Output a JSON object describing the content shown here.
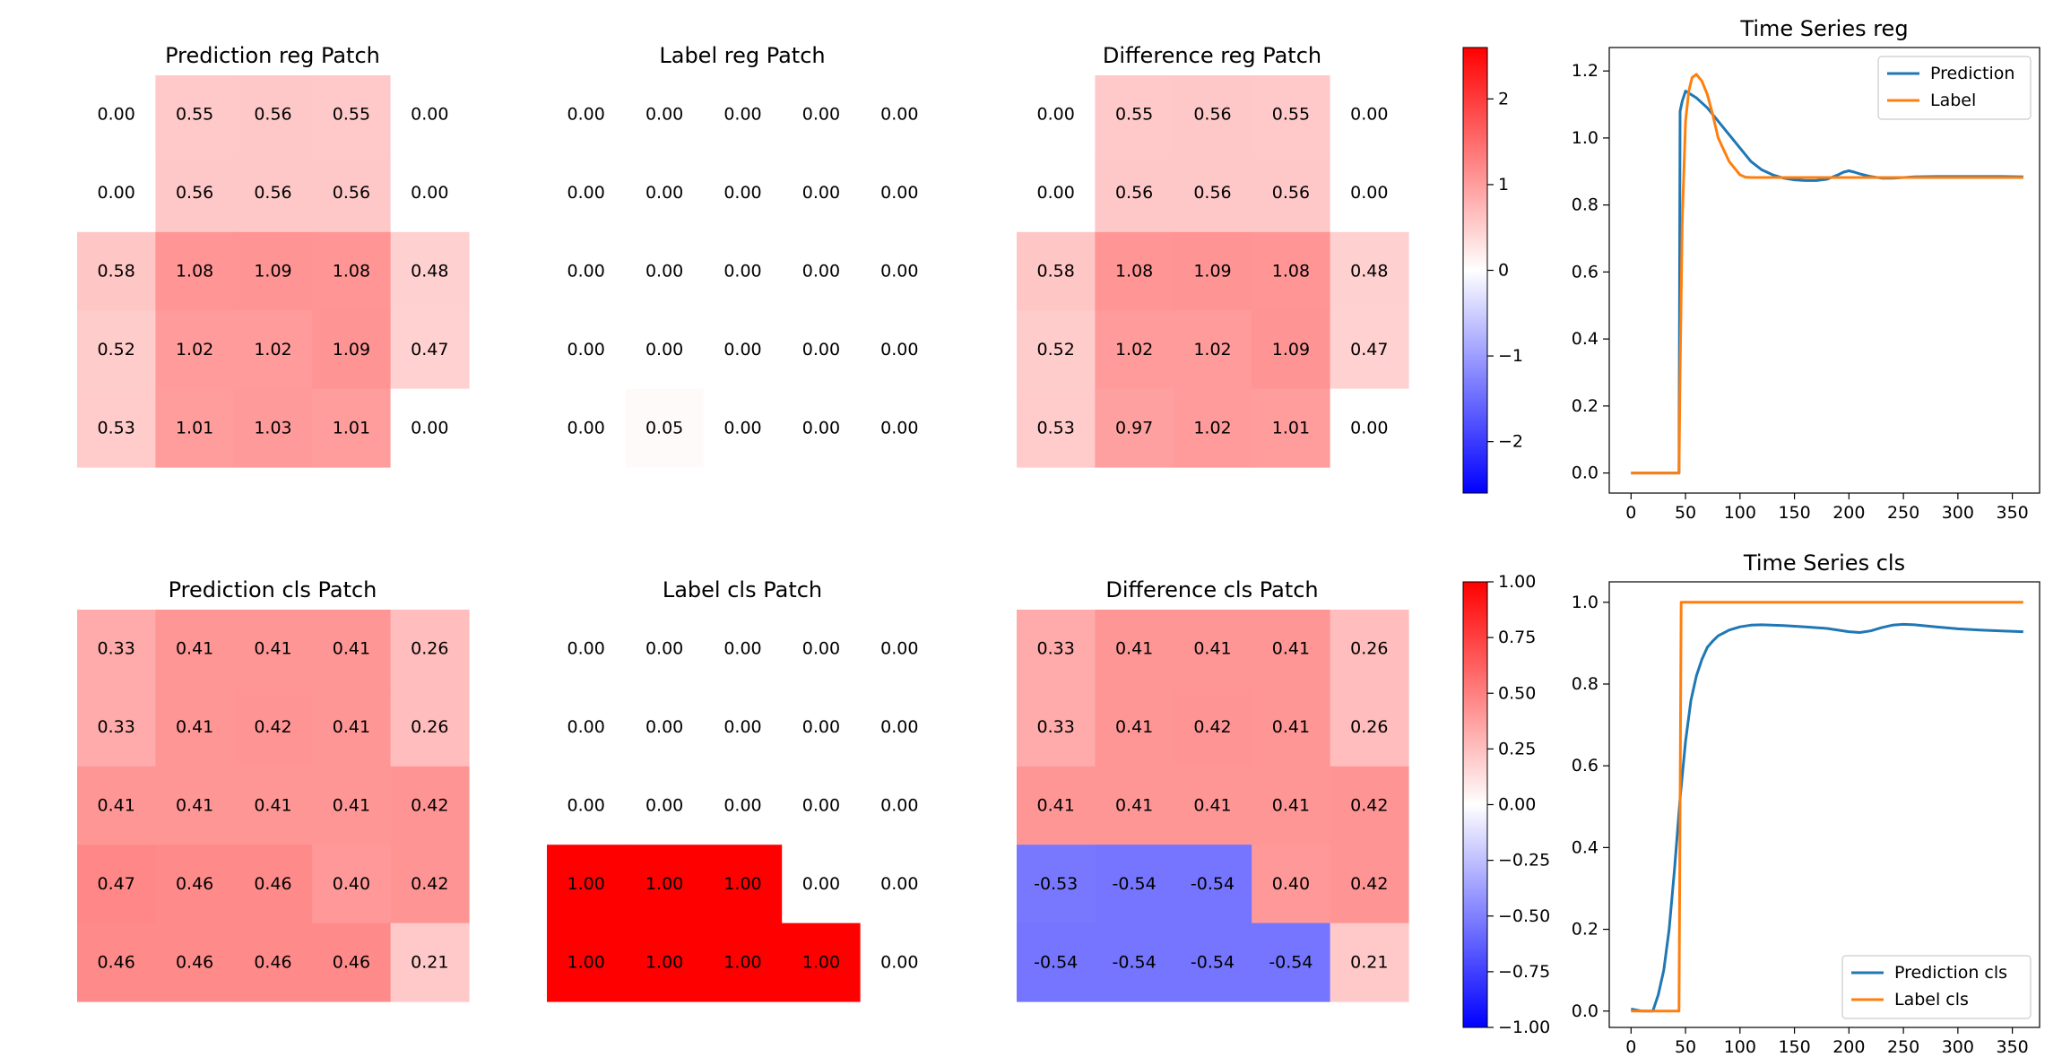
{
  "chart_data": [
    {
      "type": "heatmap",
      "title": "Prediction reg Patch",
      "values": [
        [
          0.0,
          0.55,
          0.56,
          0.55,
          0.0
        ],
        [
          0.0,
          0.56,
          0.56,
          0.56,
          0.0
        ],
        [
          0.58,
          1.08,
          1.09,
          1.08,
          0.48
        ],
        [
          0.52,
          1.02,
          1.02,
          1.09,
          0.47
        ],
        [
          0.53,
          1.01,
          1.03,
          1.01,
          0.0
        ]
      ],
      "labels": [
        [
          "0.00",
          "0.55",
          "0.56",
          "0.55",
          "0.00"
        ],
        [
          "0.00",
          "0.56",
          "0.56",
          "0.56",
          "0.00"
        ],
        [
          "0.58",
          "1.08",
          "1.09",
          "1.08",
          "0.48"
        ],
        [
          "0.52",
          "1.02",
          "1.02",
          "1.09",
          "0.47"
        ],
        [
          "0.53",
          "1.01",
          "1.03",
          "1.01",
          "0.00"
        ]
      ],
      "colormap": "bwr",
      "vlim": [
        -2.6,
        2.6
      ]
    },
    {
      "type": "heatmap",
      "title": "Label reg Patch",
      "values": [
        [
          0,
          0,
          0,
          0,
          0
        ],
        [
          0,
          0,
          0,
          0,
          0
        ],
        [
          0,
          0,
          0,
          0,
          0
        ],
        [
          0,
          0,
          0,
          0,
          0
        ],
        [
          0,
          0.05,
          0,
          0,
          0
        ]
      ],
      "labels": [
        [
          "0.00",
          "0.00",
          "0.00",
          "0.00",
          "0.00"
        ],
        [
          "0.00",
          "0.00",
          "0.00",
          "0.00",
          "0.00"
        ],
        [
          "0.00",
          "0.00",
          "0.00",
          "0.00",
          "0.00"
        ],
        [
          "0.00",
          "0.00",
          "0.00",
          "0.00",
          "0.00"
        ],
        [
          "0.00",
          "0.05",
          "0.00",
          "0.00",
          "0.00"
        ]
      ],
      "colormap": "bwr",
      "vlim": [
        -2.6,
        2.6
      ]
    },
    {
      "type": "heatmap",
      "title": "Difference reg Patch",
      "values": [
        [
          0.0,
          0.55,
          0.56,
          0.55,
          0.0
        ],
        [
          0.0,
          0.56,
          0.56,
          0.56,
          0.0
        ],
        [
          0.58,
          1.08,
          1.09,
          1.08,
          0.48
        ],
        [
          0.52,
          1.02,
          1.02,
          1.09,
          0.47
        ],
        [
          0.53,
          0.97,
          1.02,
          1.01,
          0.0
        ]
      ],
      "labels": [
        [
          "0.00",
          "0.55",
          "0.56",
          "0.55",
          "0.00"
        ],
        [
          "0.00",
          "0.56",
          "0.56",
          "0.56",
          "0.00"
        ],
        [
          "0.58",
          "1.08",
          "1.09",
          "1.08",
          "0.48"
        ],
        [
          "0.52",
          "1.02",
          "1.02",
          "1.09",
          "0.47"
        ],
        [
          "0.53",
          "0.97",
          "1.02",
          "1.01",
          "0.00"
        ]
      ],
      "colormap": "bwr",
      "vlim": [
        -2.6,
        2.6
      ],
      "colorbar": {
        "ticks": [
          2,
          1,
          0,
          -1,
          -2
        ],
        "tick_labels": [
          "2",
          "1",
          "0",
          "−1",
          "−2"
        ]
      }
    },
    {
      "type": "line",
      "title": "Time Series reg",
      "legend_position": "upper-right",
      "xlim": [
        -20,
        375
      ],
      "ylim": [
        -0.06,
        1.27
      ],
      "xticks": [
        0,
        50,
        100,
        150,
        200,
        250,
        300,
        350
      ],
      "xtick_labels": [
        "0",
        "50",
        "100",
        "150",
        "200",
        "250",
        "300",
        "350"
      ],
      "yticks": [
        0.0,
        0.2,
        0.4,
        0.6,
        0.8,
        1.0,
        1.2
      ],
      "ytick_labels": [
        "0.0",
        "0.2",
        "0.4",
        "0.6",
        "0.8",
        "1.0",
        "1.2"
      ],
      "series": [
        {
          "name": "Prediction",
          "color": "#1f77b4",
          "x": [
            0,
            44,
            45,
            47,
            50,
            55,
            60,
            70,
            80,
            90,
            100,
            110,
            120,
            130,
            140,
            150,
            160,
            170,
            180,
            190,
            195,
            200,
            205,
            210,
            220,
            230,
            240,
            250,
            260,
            280,
            300,
            320,
            340,
            360
          ],
          "y": [
            0,
            0,
            1.08,
            1.11,
            1.14,
            1.13,
            1.12,
            1.09,
            1.05,
            1.01,
            0.97,
            0.93,
            0.905,
            0.89,
            0.88,
            0.875,
            0.873,
            0.873,
            0.877,
            0.89,
            0.898,
            0.902,
            0.898,
            0.893,
            0.885,
            0.88,
            0.88,
            0.882,
            0.884,
            0.885,
            0.885,
            0.885,
            0.885,
            0.884
          ]
        },
        {
          "name": "Label",
          "color": "#ff7f0e",
          "x": [
            0,
            44,
            45,
            47,
            50,
            53,
            56,
            60,
            65,
            70,
            75,
            80,
            90,
            100,
            105,
            110,
            120,
            150,
            200,
            250,
            300,
            360
          ],
          "y": [
            0,
            0,
            0.3,
            0.75,
            1.05,
            1.14,
            1.18,
            1.19,
            1.17,
            1.13,
            1.07,
            1.0,
            0.93,
            0.89,
            0.883,
            0.882,
            0.882,
            0.882,
            0.882,
            0.882,
            0.882,
            0.882
          ]
        }
      ]
    },
    {
      "type": "heatmap",
      "title": "Prediction cls Patch",
      "values": [
        [
          0.33,
          0.41,
          0.41,
          0.41,
          0.26
        ],
        [
          0.33,
          0.41,
          0.42,
          0.41,
          0.26
        ],
        [
          0.41,
          0.41,
          0.41,
          0.41,
          0.42
        ],
        [
          0.47,
          0.46,
          0.46,
          0.4,
          0.42
        ],
        [
          0.46,
          0.46,
          0.46,
          0.46,
          0.21
        ]
      ],
      "labels": [
        [
          "0.33",
          "0.41",
          "0.41",
          "0.41",
          "0.26"
        ],
        [
          "0.33",
          "0.41",
          "0.42",
          "0.41",
          "0.26"
        ],
        [
          "0.41",
          "0.41",
          "0.41",
          "0.41",
          "0.42"
        ],
        [
          "0.47",
          "0.46",
          "0.46",
          "0.40",
          "0.42"
        ],
        [
          "0.46",
          "0.46",
          "0.46",
          "0.46",
          "0.21"
        ]
      ],
      "colormap": "bwr",
      "vlim": [
        -1,
        1
      ]
    },
    {
      "type": "heatmap",
      "title": "Label cls Patch",
      "values": [
        [
          0,
          0,
          0,
          0,
          0
        ],
        [
          0,
          0,
          0,
          0,
          0
        ],
        [
          0,
          0,
          0,
          0,
          0
        ],
        [
          1,
          1,
          1,
          0,
          0
        ],
        [
          1,
          1,
          1,
          1,
          0
        ]
      ],
      "labels": [
        [
          "0.00",
          "0.00",
          "0.00",
          "0.00",
          "0.00"
        ],
        [
          "0.00",
          "0.00",
          "0.00",
          "0.00",
          "0.00"
        ],
        [
          "0.00",
          "0.00",
          "0.00",
          "0.00",
          "0.00"
        ],
        [
          "1.00",
          "1.00",
          "1.00",
          "0.00",
          "0.00"
        ],
        [
          "1.00",
          "1.00",
          "1.00",
          "1.00",
          "0.00"
        ]
      ],
      "colormap": "bwr",
      "vlim": [
        -1,
        1
      ]
    },
    {
      "type": "heatmap",
      "title": "Difference cls Patch",
      "values": [
        [
          0.33,
          0.41,
          0.41,
          0.41,
          0.26
        ],
        [
          0.33,
          0.41,
          0.42,
          0.41,
          0.26
        ],
        [
          0.41,
          0.41,
          0.41,
          0.41,
          0.42
        ],
        [
          -0.53,
          -0.54,
          -0.54,
          0.4,
          0.42
        ],
        [
          -0.54,
          -0.54,
          -0.54,
          -0.54,
          0.21
        ]
      ],
      "labels": [
        [
          "0.33",
          "0.41",
          "0.41",
          "0.41",
          "0.26"
        ],
        [
          "0.33",
          "0.41",
          "0.42",
          "0.41",
          "0.26"
        ],
        [
          "0.41",
          "0.41",
          "0.41",
          "0.41",
          "0.42"
        ],
        [
          "-0.53",
          "-0.54",
          "-0.54",
          "0.40",
          "0.42"
        ],
        [
          "-0.54",
          "-0.54",
          "-0.54",
          "-0.54",
          "0.21"
        ]
      ],
      "colormap": "bwr",
      "vlim": [
        -1,
        1
      ],
      "colorbar": {
        "ticks": [
          1,
          0.75,
          0.5,
          0.25,
          0,
          -0.25,
          -0.5,
          -0.75,
          -1
        ],
        "tick_labels": [
          "1.00",
          "0.75",
          "0.50",
          "0.25",
          "0.00",
          "−0.25",
          "−0.50",
          "−0.75",
          "−1.00"
        ]
      }
    },
    {
      "type": "line",
      "title": "Time Series cls",
      "legend_position": "lower-right",
      "xlim": [
        -20,
        375
      ],
      "ylim": [
        -0.04,
        1.05
      ],
      "xticks": [
        0,
        50,
        100,
        150,
        200,
        250,
        300,
        350
      ],
      "xtick_labels": [
        "0",
        "50",
        "100",
        "150",
        "200",
        "250",
        "300",
        "350"
      ],
      "yticks": [
        0.0,
        0.2,
        0.4,
        0.6,
        0.8,
        1.0
      ],
      "ytick_labels": [
        "0.0",
        "0.2",
        "0.4",
        "0.6",
        "0.8",
        "1.0"
      ],
      "series": [
        {
          "name": "Prediction cls",
          "color": "#1f77b4",
          "x": [
            0,
            10,
            20,
            25,
            30,
            35,
            40,
            45,
            50,
            55,
            60,
            65,
            70,
            75,
            80,
            90,
            100,
            110,
            120,
            140,
            160,
            180,
            200,
            210,
            220,
            230,
            240,
            250,
            260,
            280,
            300,
            320,
            340,
            360
          ],
          "y": [
            0.005,
            0.0,
            0.0,
            0.04,
            0.1,
            0.2,
            0.35,
            0.52,
            0.66,
            0.76,
            0.82,
            0.86,
            0.89,
            0.905,
            0.918,
            0.932,
            0.94,
            0.944,
            0.945,
            0.943,
            0.94,
            0.936,
            0.928,
            0.926,
            0.93,
            0.938,
            0.944,
            0.946,
            0.945,
            0.94,
            0.935,
            0.932,
            0.93,
            0.928
          ]
        },
        {
          "name": "Label cls",
          "color": "#ff7f0e",
          "x": [
            0,
            44,
            45,
            46,
            360
          ],
          "y": [
            0,
            0,
            0.5,
            1,
            1
          ]
        }
      ]
    }
  ]
}
